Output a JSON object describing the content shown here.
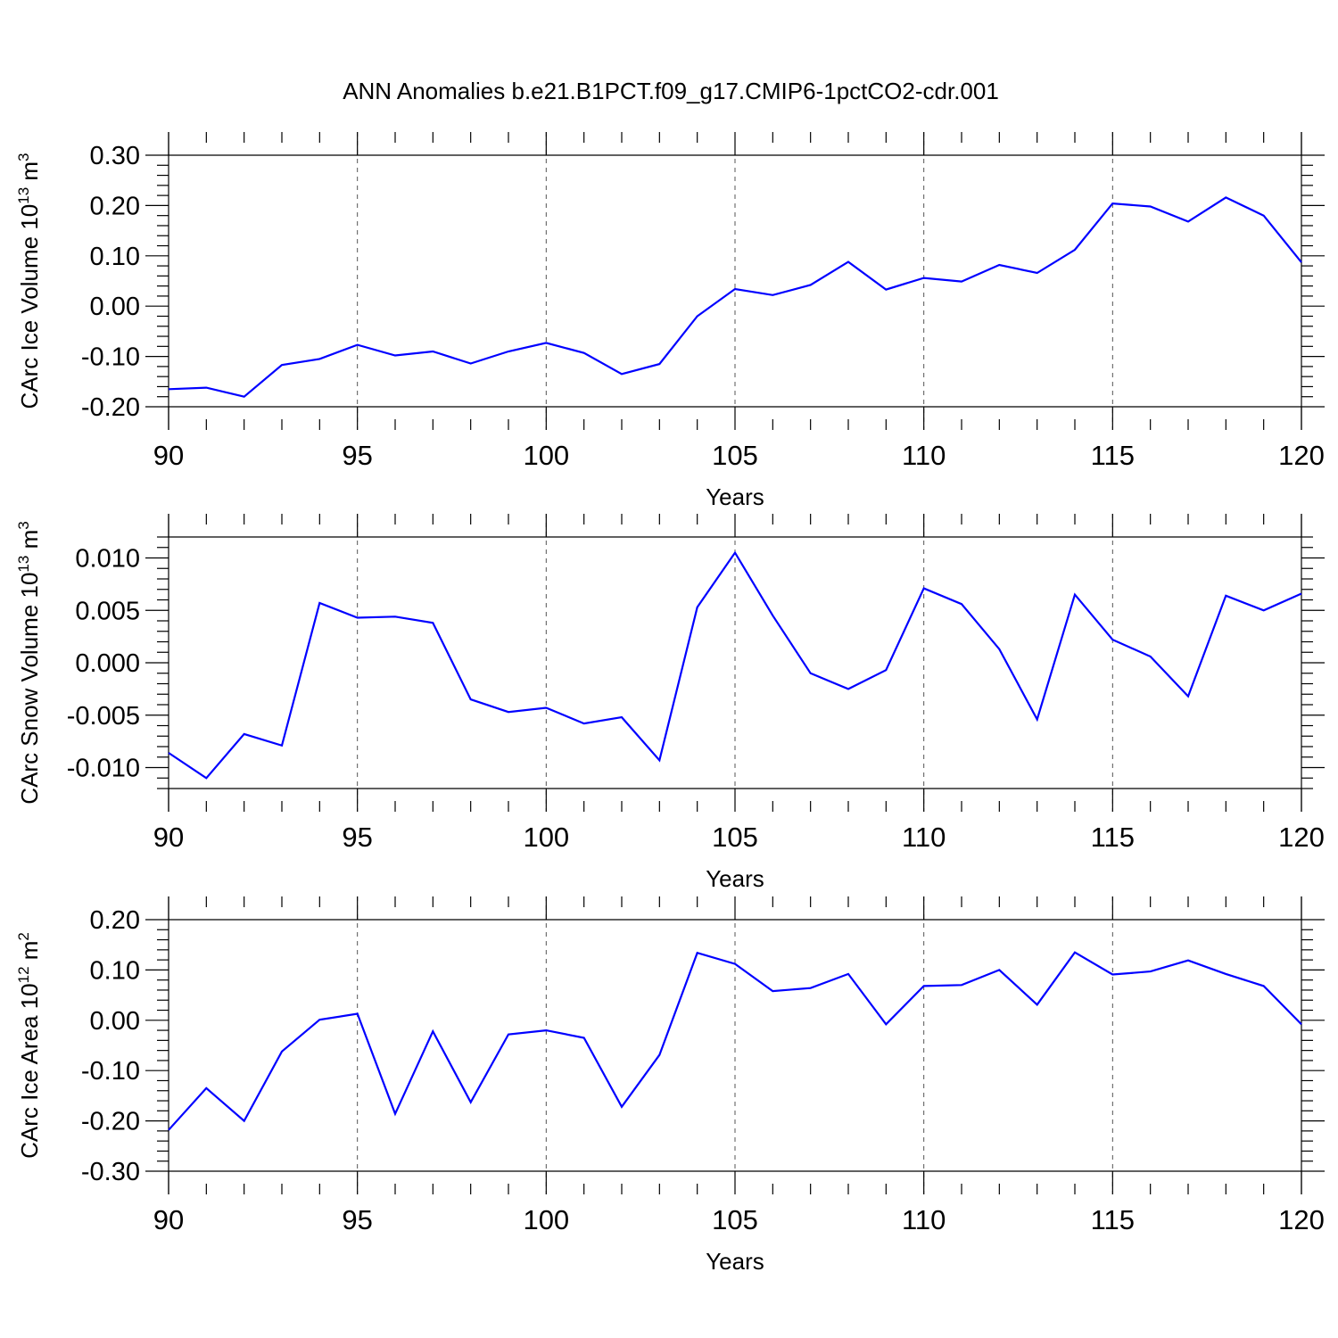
{
  "title": "ANN Anomalies b.e21.B1PCT.f09_g17.CMIP6-1pctCO2-cdr.001",
  "colors": {
    "series": "#0000ff",
    "axis": "#000000",
    "grid": "#555555"
  },
  "chart_data": [
    {
      "type": "line",
      "ylabel_main": "CArc Ice Volume 10",
      "ylabel_exp": "13",
      "ylabel_unit": " m",
      "ylabel_unit_exp": "3",
      "xlabel": "Years",
      "xlim": [
        90,
        120
      ],
      "ylim": [
        -0.2,
        0.3
      ],
      "yticks": [
        -0.2,
        -0.1,
        0.0,
        0.1,
        0.2,
        0.3
      ],
      "ytick_labels": [
        "-0.20",
        "-0.10",
        "0.00",
        "0.10",
        "0.20",
        "0.30"
      ],
      "xticks": [
        90,
        95,
        100,
        105,
        110,
        115,
        120
      ],
      "xtick_labels": [
        "90",
        "95",
        "100",
        "105",
        "110",
        "115",
        "120"
      ],
      "grid": "vertical dashed",
      "x": [
        90,
        91,
        92,
        93,
        94,
        95,
        96,
        97,
        98,
        99,
        100,
        101,
        102,
        103,
        104,
        105,
        106,
        107,
        108,
        109,
        110,
        111,
        112,
        113,
        114,
        115,
        116,
        117,
        118,
        119,
        120
      ],
      "y": [
        -0.165,
        -0.162,
        -0.18,
        -0.117,
        -0.105,
        -0.077,
        -0.098,
        -0.09,
        -0.114,
        -0.09,
        -0.073,
        -0.093,
        -0.135,
        -0.115,
        -0.02,
        0.034,
        0.022,
        0.042,
        0.088,
        0.033,
        0.056,
        0.049,
        0.082,
        0.066,
        0.112,
        0.204,
        0.198,
        0.168,
        0.216,
        0.18,
        0.087
      ]
    },
    {
      "type": "line",
      "ylabel_main": "CArc Snow Volume 10",
      "ylabel_exp": "13",
      "ylabel_unit": " m",
      "ylabel_unit_exp": "3",
      "xlabel": "Years",
      "xlim": [
        90,
        120
      ],
      "ylim": [
        -0.012,
        0.012
      ],
      "yticks": [
        -0.01,
        -0.005,
        0.0,
        0.005,
        0.01
      ],
      "ytick_labels": [
        "-0.010",
        "-0.005",
        "0.000",
        "0.005",
        "0.010"
      ],
      "xticks": [
        90,
        95,
        100,
        105,
        110,
        115,
        120
      ],
      "xtick_labels": [
        "90",
        "95",
        "100",
        "105",
        "110",
        "115",
        "120"
      ],
      "grid": "vertical dashed",
      "x": [
        90,
        91,
        92,
        93,
        94,
        95,
        96,
        97,
        98,
        99,
        100,
        101,
        102,
        103,
        104,
        105,
        106,
        107,
        108,
        109,
        110,
        111,
        112,
        113,
        114,
        115,
        116,
        117,
        118,
        119,
        120
      ],
      "y": [
        -0.0086,
        -0.011,
        -0.0068,
        -0.0079,
        0.0057,
        0.0043,
        0.0044,
        0.0038,
        -0.0035,
        -0.0047,
        -0.0043,
        -0.0058,
        -0.0052,
        -0.0093,
        0.0053,
        0.0105,
        0.0045,
        -0.001,
        -0.0025,
        -0.0007,
        0.0071,
        0.0056,
        0.0013,
        -0.0054,
        0.0065,
        0.0022,
        0.0006,
        -0.0032,
        0.0064,
        0.005,
        0.0066
      ]
    },
    {
      "type": "line",
      "ylabel_main": "CArc Ice Area 10",
      "ylabel_exp": "12",
      "ylabel_unit": " m",
      "ylabel_unit_exp": "2",
      "xlabel": "Years",
      "xlim": [
        90,
        120
      ],
      "ylim": [
        -0.3,
        0.2
      ],
      "yticks": [
        -0.3,
        -0.2,
        -0.1,
        0.0,
        0.1,
        0.2
      ],
      "ytick_labels": [
        "-0.30",
        "-0.20",
        "-0.10",
        "0.00",
        "0.10",
        "0.20"
      ],
      "xticks": [
        90,
        95,
        100,
        105,
        110,
        115,
        120
      ],
      "xtick_labels": [
        "90",
        "95",
        "100",
        "105",
        "110",
        "115",
        "120"
      ],
      "grid": "vertical dashed",
      "x": [
        90,
        91,
        92,
        93,
        94,
        95,
        96,
        97,
        98,
        99,
        100,
        101,
        102,
        103,
        104,
        105,
        106,
        107,
        108,
        109,
        110,
        111,
        112,
        113,
        114,
        115,
        116,
        117,
        118,
        119,
        120
      ],
      "y": [
        -0.218,
        -0.135,
        -0.2,
        -0.062,
        0.001,
        0.013,
        -0.186,
        -0.022,
        -0.163,
        -0.028,
        -0.02,
        -0.035,
        -0.172,
        -0.069,
        0.134,
        0.112,
        0.058,
        0.064,
        0.092,
        -0.008,
        0.068,
        0.07,
        0.1,
        0.031,
        0.135,
        0.091,
        0.097,
        0.119,
        0.092,
        0.068,
        -0.008
      ]
    }
  ]
}
